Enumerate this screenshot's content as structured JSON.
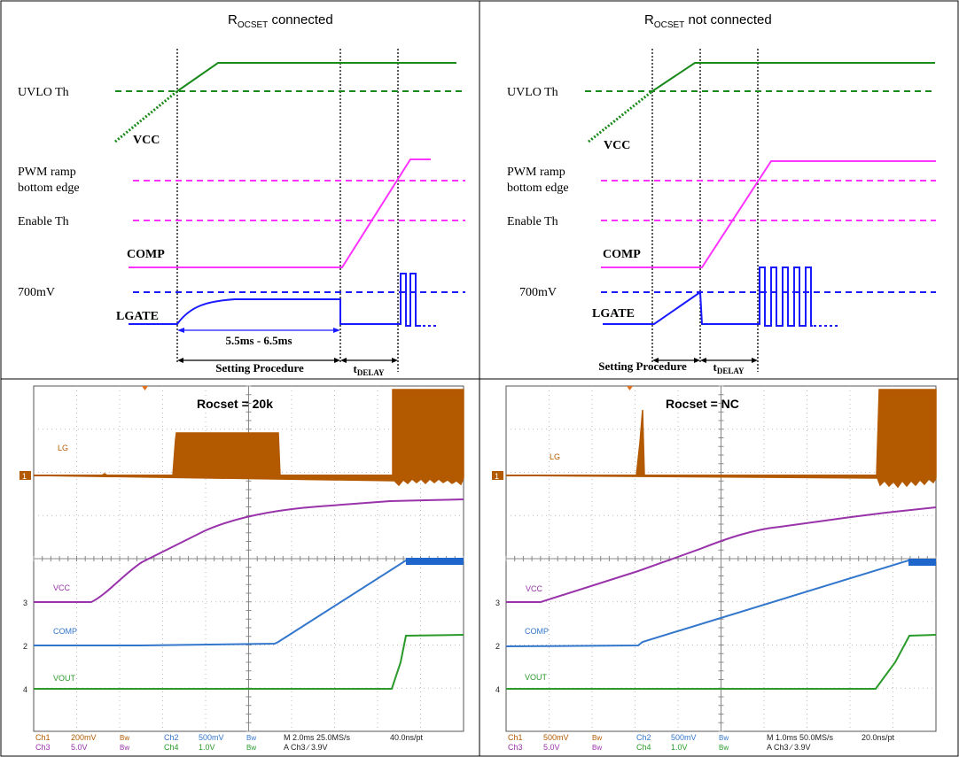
{
  "left_panel": {
    "title_sub": "OCSET",
    "title_rest": "connected",
    "labels": {
      "uvlo": "UVLO Th",
      "vcc": "VCC",
      "pwm1": "PWM ramp",
      "pwm2": "bottom edge",
      "enable": "Enable Th",
      "comp": "COMP",
      "mv700": "700mV",
      "lgate": "LGATE",
      "timing": "5.5ms - 6.5ms",
      "setting": "Setting Procedure",
      "tdelay_sub": "DELAY"
    }
  },
  "right_panel": {
    "title_sub": "OCSET",
    "title_rest": "not connected",
    "labels": {
      "uvlo": "UVLO Th",
      "vcc": "VCC",
      "pwm1": "PWM ramp",
      "pwm2": "bottom edge",
      "enable": "Enable Th",
      "comp": "COMP",
      "mv700": "700mV",
      "lgate": "LGATE",
      "setting": "Setting Procedure",
      "tdelay_sub": "DELAY"
    }
  },
  "scope_left": {
    "title": "Rocset = 20k",
    "channels": {
      "lg": "LG",
      "vcc": "VCC",
      "comp": "COMP",
      "vout": "VOUT"
    },
    "markers": {
      "m1": "1",
      "m3": "3",
      "m2": "2",
      "m4": "4"
    },
    "footer": {
      "r1": [
        "Ch1",
        "200mV",
        "Bw",
        "Ch2",
        "500mV",
        "Bw",
        "M 2.0ms 25.0MS/s",
        "40.0ns/pt"
      ],
      "r2": [
        "Ch3",
        "5.0V",
        "Bw",
        "Ch4",
        "1.0V",
        "Bw",
        "A  Ch3  ∕  3.9V"
      ]
    }
  },
  "scope_right": {
    "title": "Rocset = NC",
    "channels": {
      "lg": "LG",
      "vcc": "VCC",
      "comp": "COMP",
      "vout": "VOUT"
    },
    "markers": {
      "m1": "1",
      "m3": "3",
      "m2": "2",
      "m4": "4"
    },
    "footer": {
      "r1": [
        "Ch1",
        "500mV",
        "Bw",
        "Ch2",
        "500mV",
        "Bw",
        "M 1.0ms 50.0MS/s",
        "20.0ns/pt"
      ],
      "r2": [
        "Ch3",
        "5.0V",
        "Bw",
        "Ch4",
        "1.0V",
        "Bw",
        "A  Ch3  ∕  3.9V"
      ]
    }
  },
  "colors": {
    "vcc_green": "#1a8a1a",
    "pwm_magenta": "#ff33ff",
    "lgate_blue": "#1a1aff",
    "scope_lg": "#b35900",
    "scope_vcc": "#9933aa",
    "scope_comp": "#3377cc",
    "scope_vout": "#2a9a2a"
  }
}
